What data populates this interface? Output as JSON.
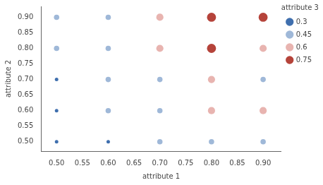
{
  "chart_data": {
    "type": "scatter",
    "xlabel": "attribute 1",
    "ylabel": "attribute 2",
    "legend_title": "attribute 3",
    "legend": "upper right",
    "grid": false,
    "xlim": [
      0.47,
      0.935
    ],
    "ylim": [
      0.47,
      0.935
    ],
    "xticks": [
      {
        "value": 0.5,
        "label": "0.50"
      },
      0.55,
      {
        "value": 0.6,
        "label": "0.60"
      },
      0.65,
      {
        "value": 0.7,
        "label": "0.70"
      },
      0.75,
      {
        "value": 0.8,
        "label": "0.80"
      },
      0.85,
      {
        "value": 0.9,
        "label": "0.90"
      }
    ],
    "yticks": [
      {
        "value": 0.5,
        "label": "0.50"
      },
      0.55,
      {
        "value": 0.6,
        "label": "0.60"
      },
      0.65,
      {
        "value": 0.7,
        "label": "0.70"
      },
      0.75,
      {
        "value": 0.8,
        "label": "0.80"
      },
      0.85,
      {
        "value": 0.9,
        "label": "0.90"
      }
    ],
    "series": [
      {
        "name": "0.3",
        "color": "#3f6fae",
        "marker": "circle",
        "x": [
          0.5,
          0.5,
          0.5,
          0.6
        ],
        "values": [
          0.5,
          0.6,
          0.7,
          0.5
        ]
      },
      {
        "name": "0.45",
        "color": "#9fb8d8",
        "marker": "circle",
        "x": [
          0.5,
          0.5,
          0.6,
          0.6,
          0.6,
          0.6,
          0.7,
          0.7,
          0.7,
          0.8,
          0.9,
          0.9
        ],
        "values": [
          0.8,
          0.9,
          0.6,
          0.7,
          0.8,
          0.9,
          0.5,
          0.6,
          0.7,
          0.5,
          0.5,
          0.7
        ]
      },
      {
        "name": "0.6",
        "color": "#e8b4b0",
        "marker": "circle",
        "x": [
          0.7,
          0.7,
          0.8,
          0.8,
          0.9,
          0.9
        ],
        "values": [
          0.8,
          0.9,
          0.6,
          0.7,
          0.6,
          0.8
        ]
      },
      {
        "name": "0.75",
        "color": "#b5433a",
        "marker": "circle",
        "x": [
          0.8,
          0.8,
          0.9
        ],
        "values": [
          0.8,
          0.9,
          0.9
        ]
      }
    ]
  }
}
